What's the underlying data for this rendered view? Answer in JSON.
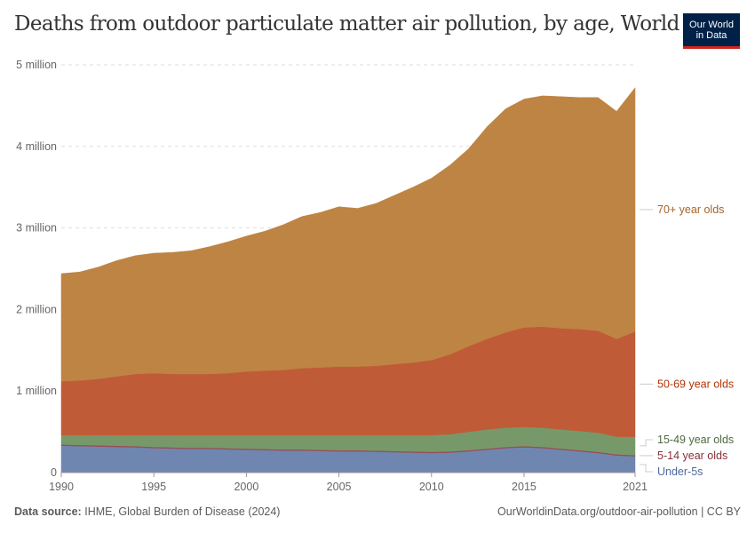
{
  "title": "Deaths from outdoor particulate matter air pollution, by age, World",
  "logo": {
    "line1": "Our World",
    "line2": "in Data"
  },
  "footer": {
    "source_label": "Data source:",
    "source_text": "IHME, Global Burden of Disease (2024)",
    "url_text": "OurWorldinData.org/outdoor-air-pollution | CC BY"
  },
  "chart_data": {
    "type": "area",
    "stacked": true,
    "title": "Deaths from outdoor particulate matter air pollution, by age, World",
    "x": [
      1990,
      1991,
      1992,
      1993,
      1994,
      1995,
      1996,
      1997,
      1998,
      1999,
      2000,
      2001,
      2002,
      2003,
      2004,
      2005,
      2006,
      2007,
      2008,
      2009,
      2010,
      2011,
      2012,
      2013,
      2014,
      2015,
      2016,
      2017,
      2018,
      2019,
      2020,
      2021
    ],
    "x_ticks": [
      "1990",
      "1995",
      "2000",
      "2005",
      "2010",
      "2015",
      "2021"
    ],
    "x_tick_values": [
      1990,
      1995,
      2000,
      2005,
      2010,
      2015,
      2021
    ],
    "y_ticks": [
      "0",
      "1 million",
      "2 million",
      "3 million",
      "4 million",
      "5 million"
    ],
    "y_tick_values": [
      0,
      1000000,
      2000000,
      3000000,
      4000000,
      5000000
    ],
    "ylim": [
      0,
      5000000
    ],
    "grid": "horizontal dashed",
    "legend": "right, labels at series ends",
    "series": [
      {
        "name": "Under-5s",
        "color": "#6f87b0",
        "label_color": "#4c6a9c",
        "values": [
          330000,
          325000,
          320000,
          315000,
          310000,
          300000,
          295000,
          290000,
          290000,
          285000,
          280000,
          275000,
          270000,
          270000,
          265000,
          260000,
          260000,
          255000,
          250000,
          245000,
          240000,
          245000,
          260000,
          280000,
          300000,
          310000,
          300000,
          280000,
          260000,
          240000,
          210000,
          200000
        ]
      },
      {
        "name": "5-14 year olds",
        "color": "#9a4d57",
        "label_color": "#883039",
        "values": [
          15000,
          15000,
          15000,
          15000,
          15000,
          15000,
          15000,
          15000,
          15000,
          15000,
          15000,
          15000,
          15000,
          15000,
          15000,
          15000,
          15000,
          15000,
          15000,
          15000,
          15000,
          15000,
          15000,
          15000,
          15000,
          15000,
          15000,
          15000,
          15000,
          15000,
          15000,
          15000
        ]
      },
      {
        "name": "15-49 year olds",
        "color": "#77996a",
        "label_color": "#4c6a3f",
        "values": [
          115000,
          120000,
          125000,
          130000,
          135000,
          145000,
          150000,
          155000,
          155000,
          160000,
          165000,
          170000,
          175000,
          175000,
          180000,
          185000,
          185000,
          190000,
          195000,
          200000,
          205000,
          210000,
          225000,
          235000,
          235000,
          235000,
          235000,
          235000,
          235000,
          235000,
          215000,
          225000
        ]
      },
      {
        "name": "50-69 year olds",
        "color": "#c05b38",
        "label_color": "#b13507",
        "values": [
          660000,
          670000,
          690000,
          720000,
          750000,
          760000,
          750000,
          750000,
          750000,
          760000,
          780000,
          790000,
          800000,
          820000,
          830000,
          840000,
          840000,
          850000,
          870000,
          890000,
          920000,
          980000,
          1050000,
          1110000,
          1170000,
          1220000,
          1240000,
          1240000,
          1250000,
          1250000,
          1200000,
          1290000
        ]
      },
      {
        "name": "70+ year olds",
        "color": "#be8443",
        "label_color": "#a2662a",
        "values": [
          1320000,
          1330000,
          1370000,
          1420000,
          1450000,
          1470000,
          1490000,
          1510000,
          1560000,
          1610000,
          1660000,
          1710000,
          1780000,
          1860000,
          1900000,
          1960000,
          1940000,
          1990000,
          2070000,
          2150000,
          2230000,
          2320000,
          2420000,
          2600000,
          2740000,
          2800000,
          2830000,
          2840000,
          2840000,
          2860000,
          2790000,
          2990000
        ]
      }
    ]
  }
}
